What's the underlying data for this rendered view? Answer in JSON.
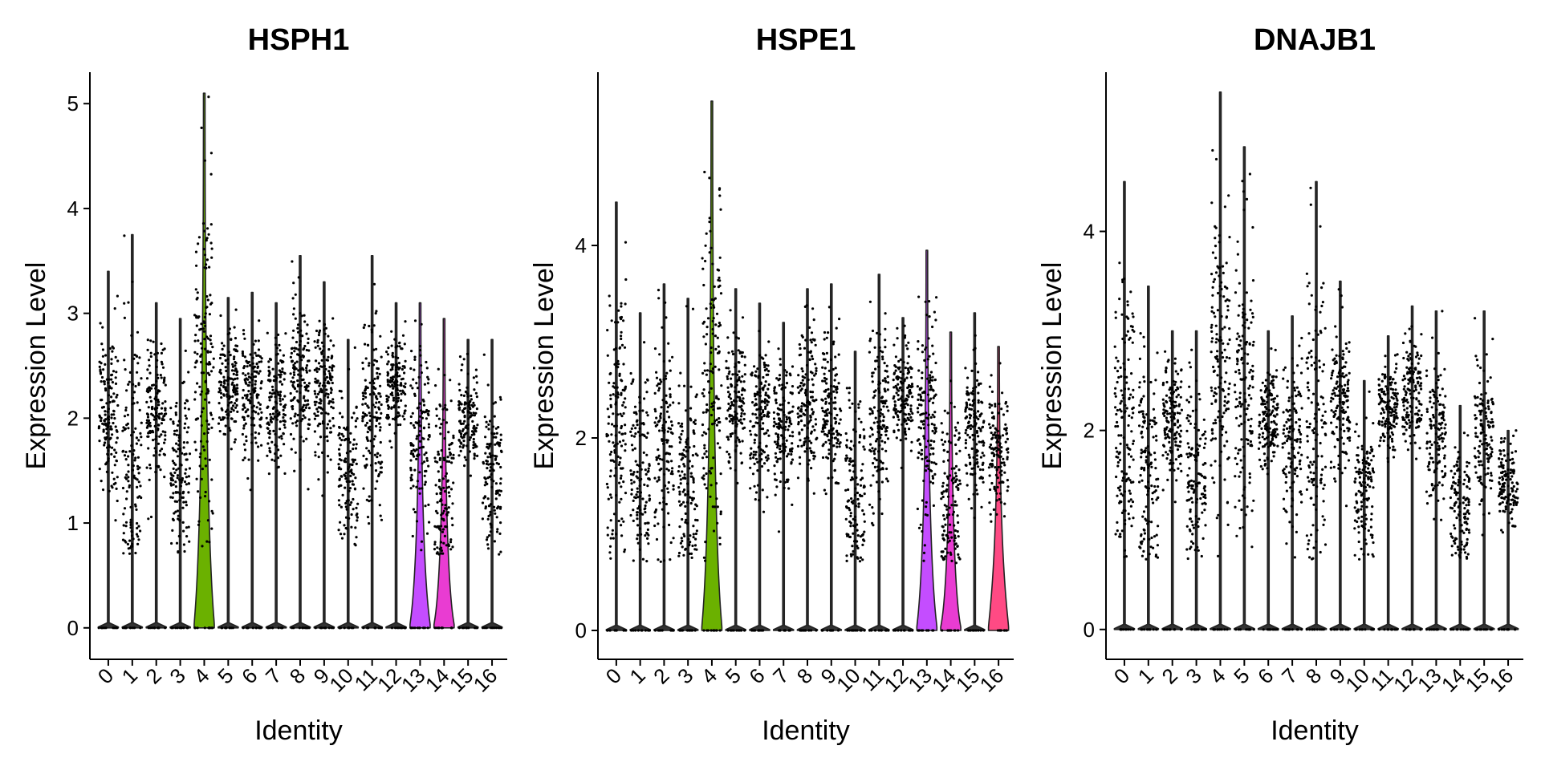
{
  "chart_data": [
    {
      "type": "violin",
      "title": "HSPH1",
      "xlabel": "Identity",
      "ylabel": "Expression Level",
      "categories": [
        "0",
        "1",
        "2",
        "3",
        "4",
        "5",
        "6",
        "7",
        "8",
        "9",
        "10",
        "11",
        "12",
        "13",
        "14",
        "15",
        "16"
      ],
      "ylim": [
        -0.3,
        5.3
      ],
      "yticks": [
        0,
        1,
        2,
        3,
        4,
        5
      ],
      "grid": false,
      "legend": "none",
      "violins": [
        {
          "cat": "0",
          "max": 3.4,
          "median": 2.05,
          "fill": "#F8766D",
          "peak": 0.0
        },
        {
          "cat": "1",
          "max": 3.75,
          "median": 1.55,
          "fill": "#E58700",
          "peak": 0.0
        },
        {
          "cat": "2",
          "max": 3.1,
          "median": 2.1,
          "fill": "#C99800",
          "peak": 0.0
        },
        {
          "cat": "3",
          "max": 2.95,
          "median": 1.45,
          "fill": "#A3A500",
          "peak": 0.0
        },
        {
          "cat": "4",
          "max": 5.1,
          "median": 2.5,
          "fill": "#6BB100",
          "peak": 0.9
        },
        {
          "cat": "5",
          "max": 3.15,
          "median": 2.3,
          "fill": "#00BA38",
          "peak": 0.0
        },
        {
          "cat": "6",
          "max": 3.2,
          "median": 2.2,
          "fill": "#00BF7D",
          "peak": 0.0
        },
        {
          "cat": "7",
          "max": 3.1,
          "median": 2.1,
          "fill": "#00C0AF",
          "peak": 0.0
        },
        {
          "cat": "8",
          "max": 3.55,
          "median": 2.4,
          "fill": "#00BCD8",
          "peak": 0.0
        },
        {
          "cat": "9",
          "max": 3.3,
          "median": 2.3,
          "fill": "#00B0F6",
          "peak": 0.0
        },
        {
          "cat": "10",
          "max": 2.75,
          "median": 1.45,
          "fill": "#619CFF",
          "peak": 0.0
        },
        {
          "cat": "11",
          "max": 3.55,
          "median": 2.15,
          "fill": "#B983FF",
          "peak": 0.0
        },
        {
          "cat": "12",
          "max": 3.1,
          "median": 2.3,
          "fill": "#E76BF3",
          "peak": 0.0
        },
        {
          "cat": "13",
          "max": 3.1,
          "median": 1.75,
          "fill": "#C44DFF",
          "peak": 0.55
        },
        {
          "cat": "14",
          "max": 2.95,
          "median": 1.4,
          "fill": "#E93CD2",
          "peak": 0.45
        },
        {
          "cat": "15",
          "max": 2.75,
          "median": 2.0,
          "fill": "#FD61D1",
          "peak": 0.0
        },
        {
          "cat": "16",
          "max": 2.75,
          "median": 1.5,
          "fill": "#FF6A98",
          "peak": 0.0
        }
      ]
    },
    {
      "type": "violin",
      "title": "HSPE1",
      "xlabel": "Identity",
      "ylabel": "Expression Level",
      "categories": [
        "0",
        "1",
        "2",
        "3",
        "4",
        "5",
        "6",
        "7",
        "8",
        "9",
        "10",
        "11",
        "12",
        "13",
        "14",
        "15",
        "16"
      ],
      "ylim": [
        -0.3,
        5.8
      ],
      "yticks": [
        0,
        2,
        4
      ],
      "grid": false,
      "legend": "none",
      "violins": [
        {
          "cat": "0",
          "max": 4.45,
          "median": 2.1,
          "fill": "#F8766D",
          "peak": 0.0
        },
        {
          "cat": "1",
          "max": 3.3,
          "median": 1.6,
          "fill": "#E58700",
          "peak": 0.0
        },
        {
          "cat": "2",
          "max": 3.6,
          "median": 2.0,
          "fill": "#C99800",
          "peak": 0.0
        },
        {
          "cat": "3",
          "max": 3.45,
          "median": 1.5,
          "fill": "#A3A500",
          "peak": 0.0
        },
        {
          "cat": "4",
          "max": 5.5,
          "median": 2.6,
          "fill": "#6BB100",
          "peak": 0.9
        },
        {
          "cat": "5",
          "max": 3.55,
          "median": 2.4,
          "fill": "#00BA38",
          "peak": 0.0
        },
        {
          "cat": "6",
          "max": 3.4,
          "median": 2.2,
          "fill": "#00BF7D",
          "peak": 0.0
        },
        {
          "cat": "7",
          "max": 3.2,
          "median": 2.1,
          "fill": "#00C0AF",
          "peak": 0.0
        },
        {
          "cat": "8",
          "max": 3.55,
          "median": 2.4,
          "fill": "#00BCD8",
          "peak": 0.0
        },
        {
          "cat": "9",
          "max": 3.6,
          "median": 2.35,
          "fill": "#00B0F6",
          "peak": 0.0
        },
        {
          "cat": "10",
          "max": 2.9,
          "median": 1.45,
          "fill": "#619CFF",
          "peak": 0.0
        },
        {
          "cat": "11",
          "max": 3.7,
          "median": 2.2,
          "fill": "#B983FF",
          "peak": 0.0
        },
        {
          "cat": "12",
          "max": 3.25,
          "median": 2.4,
          "fill": "#E76BF3",
          "peak": 0.0
        },
        {
          "cat": "13",
          "max": 3.95,
          "median": 2.2,
          "fill": "#C44DFF",
          "peak": 0.7
        },
        {
          "cat": "14",
          "max": 3.1,
          "median": 1.3,
          "fill": "#E93CD2",
          "peak": 0.45
        },
        {
          "cat": "15",
          "max": 3.3,
          "median": 2.1,
          "fill": "#FD61D1",
          "peak": 0.0
        },
        {
          "cat": "16",
          "max": 2.95,
          "median": 1.9,
          "fill": "#FF4A84",
          "peak": 0.85
        }
      ]
    },
    {
      "type": "violin",
      "title": "DNAJB1",
      "xlabel": "Identity",
      "ylabel": "Expression Level",
      "categories": [
        "0",
        "1",
        "2",
        "3",
        "4",
        "5",
        "6",
        "7",
        "8",
        "9",
        "10",
        "11",
        "12",
        "13",
        "14",
        "15",
        "16"
      ],
      "ylim": [
        -0.3,
        5.6
      ],
      "yticks": [
        0,
        2,
        4
      ],
      "grid": false,
      "legend": "none",
      "violins": [
        {
          "cat": "0",
          "max": 4.5,
          "median": 2.1,
          "fill": "#F8766D",
          "peak": 0.0
        },
        {
          "cat": "1",
          "max": 3.45,
          "median": 1.6,
          "fill": "#E58700",
          "peak": 0.0
        },
        {
          "cat": "2",
          "max": 3.0,
          "median": 2.1,
          "fill": "#C99800",
          "peak": 0.0
        },
        {
          "cat": "3",
          "max": 3.0,
          "median": 1.5,
          "fill": "#A3A500",
          "peak": 0.0
        },
        {
          "cat": "4",
          "max": 5.4,
          "median": 2.7,
          "fill": "#6BB100",
          "peak": 0.0
        },
        {
          "cat": "5",
          "max": 4.85,
          "median": 2.4,
          "fill": "#00BA38",
          "peak": 0.0
        },
        {
          "cat": "6",
          "max": 3.0,
          "median": 2.1,
          "fill": "#00BF7D",
          "peak": 0.0
        },
        {
          "cat": "7",
          "max": 3.15,
          "median": 1.9,
          "fill": "#00C0AF",
          "peak": 0.0
        },
        {
          "cat": "8",
          "max": 4.5,
          "median": 2.0,
          "fill": "#00BCD8",
          "peak": 0.0
        },
        {
          "cat": "9",
          "max": 3.5,
          "median": 2.3,
          "fill": "#00B0F6",
          "peak": 0.0
        },
        {
          "cat": "10",
          "max": 2.5,
          "median": 1.4,
          "fill": "#619CFF",
          "peak": 0.0
        },
        {
          "cat": "11",
          "max": 2.95,
          "median": 2.2,
          "fill": "#B983FF",
          "peak": 0.0
        },
        {
          "cat": "12",
          "max": 3.25,
          "median": 2.4,
          "fill": "#E76BF3",
          "peak": 0.0
        },
        {
          "cat": "13",
          "max": 3.2,
          "median": 2.0,
          "fill": "#C44DFF",
          "peak": 0.0
        },
        {
          "cat": "14",
          "max": 2.25,
          "median": 1.2,
          "fill": "#E93CD2",
          "peak": 0.0
        },
        {
          "cat": "15",
          "max": 3.2,
          "median": 1.95,
          "fill": "#FD61D1",
          "peak": 0.0
        },
        {
          "cat": "16",
          "max": 2.0,
          "median": 1.5,
          "fill": "#FF6A98",
          "peak": 0.0
        }
      ]
    }
  ]
}
